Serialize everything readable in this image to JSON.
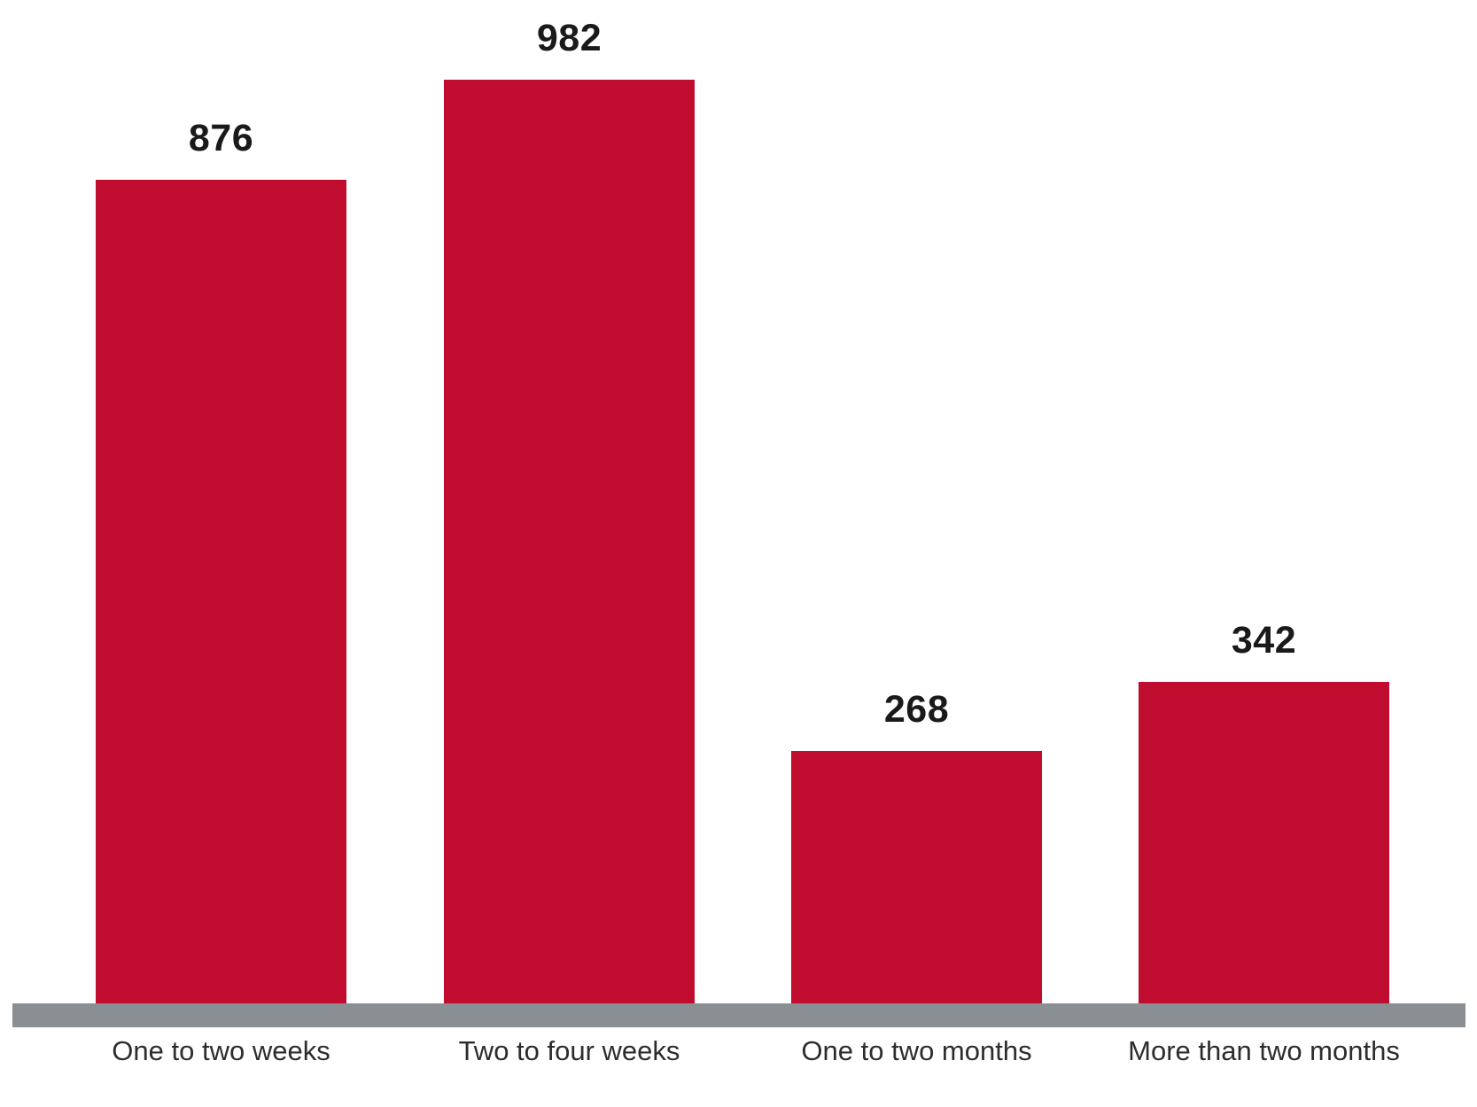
{
  "chart_data": {
    "type": "bar",
    "categories": [
      "One to two weeks",
      "Two to four weeks",
      "One to two months",
      "More than two months"
    ],
    "values": [
      876,
      982,
      268,
      342
    ],
    "title": "",
    "xlabel": "",
    "ylabel": "",
    "value_range": [
      0,
      982
    ],
    "grid": false,
    "legend": false,
    "y_axis_visible": false,
    "data_labels_visible": true,
    "baseline_visible": true
  },
  "colors": {
    "bar": "#BF0C2F",
    "baseline": "#898F93",
    "value_label": "#1A1A1A",
    "category_label": "#2D2D2D",
    "background": "#FFFFFF"
  }
}
